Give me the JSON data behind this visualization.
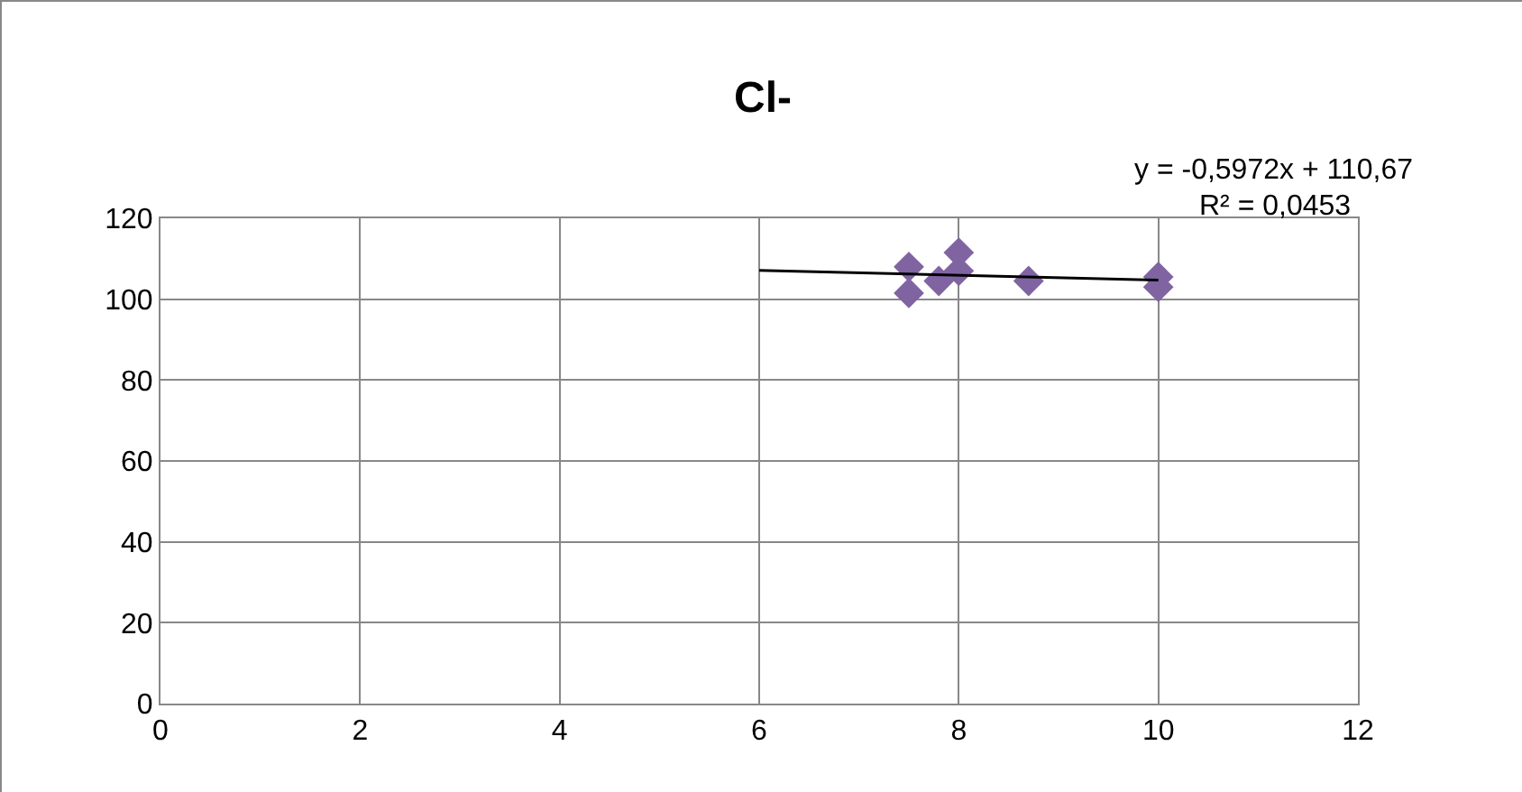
{
  "chart_data": {
    "type": "scatter",
    "title": "Cl-",
    "marker": "diamond",
    "grid": true,
    "xlim": [
      0,
      12
    ],
    "xticks": [
      0,
      2,
      4,
      6,
      8,
      10,
      12
    ],
    "ylim": [
      0,
      120
    ],
    "yticks": [
      0,
      20,
      40,
      60,
      80,
      100,
      120
    ],
    "annotations": [
      "y = -0,5972x + 110,67",
      "R² = 0,0453"
    ],
    "series": [
      {
        "color": "#8064a2",
        "x": [
          7.5,
          7.5,
          7.8,
          8,
          8,
          8.7,
          10,
          10
        ],
        "values": [
          108,
          101.5,
          104.5,
          111.5,
          107,
          104.5,
          105.5,
          103
        ]
      },
      {
        "type": "line",
        "color": "#000000",
        "marker": "none",
        "x": [
          6,
          10
        ],
        "values": [
          107.1,
          104.7
        ]
      }
    ]
  }
}
